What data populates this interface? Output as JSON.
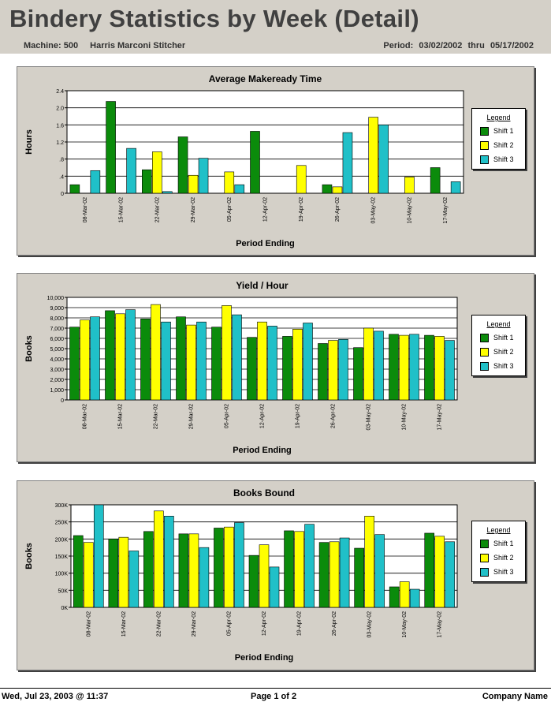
{
  "report": {
    "title": "Bindery Statistics by Week (Detail)",
    "machine_label": "Machine: 500",
    "machine_name": "Harris Marconi Stitcher",
    "period_label": "Period:",
    "period_start": "03/02/2002",
    "period_sep": "thru",
    "period_end": "05/17/2002"
  },
  "footer": {
    "printed": "Wed, Jul 23, 2003 @ 11:37",
    "page": "Page 1 of 2",
    "company": "Company Name"
  },
  "colors": {
    "shift1": "#0b8b0b",
    "shift2": "#ffff00",
    "shift3": "#20c0c8"
  },
  "chart_data": [
    {
      "type": "bar",
      "title": "Average Makeready Time",
      "xlabel": "Period Ending",
      "ylabel": "Hours",
      "ylim": [
        0,
        2.4
      ],
      "yticks": [
        0,
        0.4,
        0.8,
        1.2,
        1.6,
        2.0,
        2.4
      ],
      "ytick_labels": [
        "0",
        ".4",
        ".8",
        "1.2",
        "1.6",
        "2.0",
        "2.4"
      ],
      "grid": true,
      "legend": {
        "title": "Legend",
        "placement": "right"
      },
      "categories": [
        "08-Mar-02",
        "15-Mar-02",
        "22-Mar-02",
        "29-Mar-02",
        "05-Apr-02",
        "12-Apr-02",
        "19-Apr-02",
        "26-Apr-02",
        "03-May-02",
        "10-May-02",
        "17-May-02"
      ],
      "series": [
        {
          "name": "Shift 1",
          "values": [
            0.2,
            2.15,
            0.55,
            1.32,
            0,
            1.45,
            0,
            0.2,
            0,
            0,
            0.6
          ]
        },
        {
          "name": "Shift 2",
          "values": [
            0,
            0,
            0.97,
            0.42,
            0.5,
            0,
            0.65,
            0.15,
            1.78,
            0.38,
            0
          ]
        },
        {
          "name": "Shift 3",
          "values": [
            0.53,
            1.05,
            0.04,
            0.82,
            0.2,
            0,
            0,
            1.42,
            1.6,
            0,
            0.27
          ]
        }
      ]
    },
    {
      "type": "bar",
      "title": "Yield / Hour",
      "xlabel": "Period Ending",
      "ylabel": "Books",
      "ylim": [
        0,
        10000
      ],
      "yticks": [
        0,
        1000,
        2000,
        3000,
        4000,
        5000,
        6000,
        7000,
        8000,
        9000,
        10000
      ],
      "ytick_labels": [
        "0",
        "1,000",
        "2,000",
        "3,000",
        "4,000",
        "5,000",
        "6,000",
        "7,000",
        "8,000",
        "9,000",
        "10,000"
      ],
      "grid": true,
      "legend": {
        "title": "Legend",
        "placement": "right"
      },
      "categories": [
        "08-Mar-02",
        "15-Mar-02",
        "22-Mar-02",
        "29-Mar-02",
        "05-Apr-02",
        "12-Apr-02",
        "19-Apr-02",
        "26-Apr-02",
        "03-May-02",
        "10-May-02",
        "17-May-02"
      ],
      "series": [
        {
          "name": "Shift 1",
          "values": [
            7100,
            8700,
            7900,
            8100,
            7100,
            6100,
            6200,
            5500,
            5100,
            6400,
            6300
          ]
        },
        {
          "name": "Shift 2",
          "values": [
            7800,
            8400,
            9300,
            7300,
            9200,
            7600,
            6900,
            5800,
            7000,
            6300,
            6200
          ]
        },
        {
          "name": "Shift 3",
          "values": [
            8100,
            8800,
            7600,
            7600,
            8300,
            7200,
            7500,
            5900,
            6700,
            6400,
            5800
          ]
        }
      ]
    },
    {
      "type": "bar",
      "title": "Books Bound",
      "xlabel": "Period Ending",
      "ylabel": "Books",
      "ylim": [
        0,
        300000
      ],
      "yticks": [
        0,
        50000,
        100000,
        150000,
        200000,
        250000,
        300000
      ],
      "ytick_labels": [
        "0K",
        "50K",
        "100K",
        "150K",
        "200K",
        "250K",
        "300K"
      ],
      "grid": true,
      "legend": {
        "title": "Legend",
        "placement": "right"
      },
      "categories": [
        "08-Mar-02",
        "15-Mar-02",
        "22-Mar-02",
        "29-Mar-02",
        "05-Apr-02",
        "12-Apr-02",
        "19-Apr-02",
        "26-Apr-02",
        "03-May-02",
        "10-May-02",
        "17-May-02"
      ],
      "series": [
        {
          "name": "Shift 1",
          "values": [
            210000,
            200000,
            222000,
            215000,
            232000,
            152000,
            224000,
            190000,
            173000,
            60000,
            217000
          ]
        },
        {
          "name": "Shift 2",
          "values": [
            190000,
            205000,
            282000,
            215000,
            235000,
            183000,
            222000,
            192000,
            267000,
            75000,
            208000
          ]
        },
        {
          "name": "Shift 3",
          "values": [
            300000,
            165000,
            267000,
            175000,
            248000,
            118000,
            243000,
            203000,
            213000,
            53000,
            192000
          ]
        }
      ]
    }
  ]
}
